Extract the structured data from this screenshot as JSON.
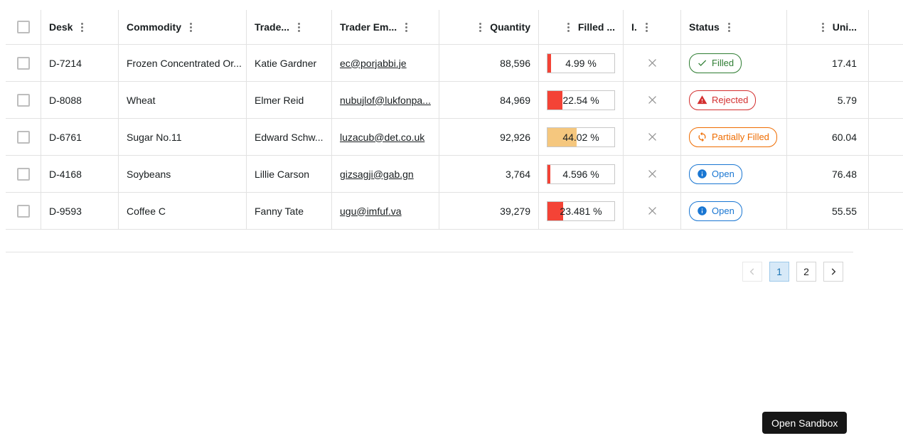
{
  "table": {
    "columns": {
      "desk": "Desk",
      "commodity": "Commodity",
      "trader": "Trade...",
      "trader_email": "Trader Em...",
      "quantity": "Quantity",
      "filled": "Filled ...",
      "i": "I.",
      "status": "Status",
      "unit": "Uni..."
    },
    "rows": [
      {
        "desk": "D-7214",
        "commodity": "Frozen Concentrated Or...",
        "trader": "Katie Gardner",
        "email": "ec@porjabbi.je",
        "quantity": "88,596",
        "filled_label": "4.99 %",
        "filled_pct": 4.99,
        "status": "Filled",
        "status_type": "filled",
        "unit": "17.41"
      },
      {
        "desk": "D-8088",
        "commodity": "Wheat",
        "trader": "Elmer Reid",
        "email": "nubujlof@lukfonpa...",
        "quantity": "84,969",
        "filled_label": "22.54 %",
        "filled_pct": 22.54,
        "status": "Rejected",
        "status_type": "rejected",
        "unit": "5.79"
      },
      {
        "desk": "D-6761",
        "commodity": "Sugar No.11",
        "trader": "Edward Schw...",
        "email": "luzacub@det.co.uk",
        "quantity": "92,926",
        "filled_label": "44.02 %",
        "filled_pct": 44.02,
        "status": "Partially Filled",
        "status_type": "partially_filled",
        "unit": "60.04"
      },
      {
        "desk": "D-4168",
        "commodity": "Soybeans",
        "trader": "Lillie Carson",
        "email": "gizsagji@gab.gn",
        "quantity": "3,764",
        "filled_label": "4.596 %",
        "filled_pct": 4.596,
        "status": "Open",
        "status_type": "open",
        "unit": "76.48"
      },
      {
        "desk": "D-9593",
        "commodity": "Coffee C",
        "trader": "Fanny Tate",
        "email": "ugu@imfuf.va",
        "quantity": "39,279",
        "filled_label": "23.481 %",
        "filled_pct": 23.481,
        "status": "Open",
        "status_type": "open",
        "unit": "55.55"
      }
    ]
  },
  "colors": {
    "bar_red": "#f44336",
    "bar_orange": "#f5c77e",
    "badge_green": "#2e7d32",
    "badge_red": "#d32f2f",
    "badge_orange": "#ef6c00",
    "badge_blue": "#1976d2",
    "pagination_active_bg": "#d7e9f8"
  },
  "pagination": {
    "pages": {
      "p1": "1",
      "p2": "2"
    },
    "active_page": "1"
  },
  "sandbox": {
    "button_label": "Open Sandbox"
  }
}
